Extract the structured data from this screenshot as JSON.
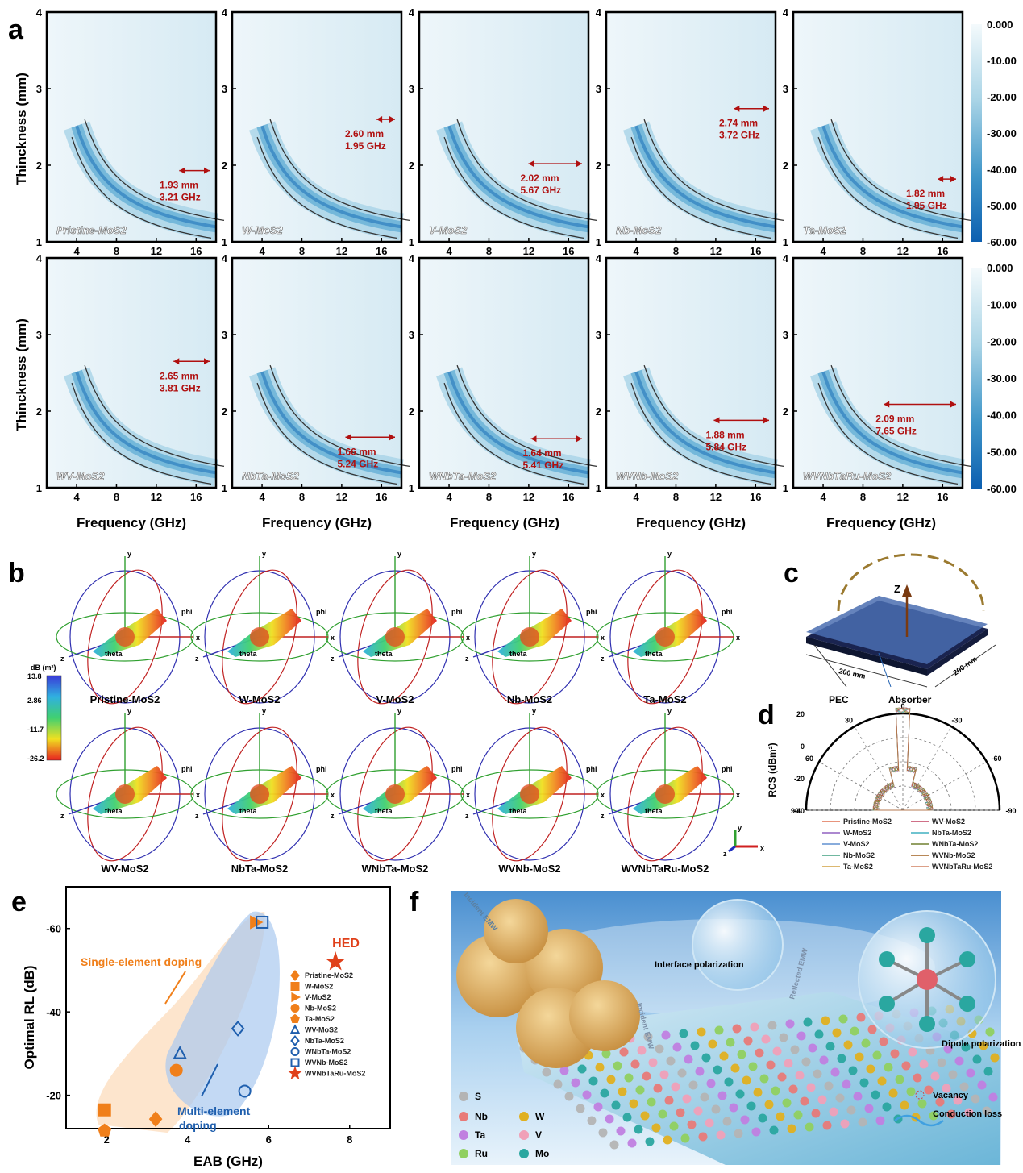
{
  "panel_labels": [
    "a",
    "b",
    "c",
    "d",
    "e",
    "f"
  ],
  "panel_a": {
    "xlabel": "Frequency (GHz)",
    "ylabel": "Thinckness (mm)",
    "x_ticks": [
      "4",
      "8",
      "12",
      "16"
    ],
    "y_ticks": [
      "1",
      "2",
      "3",
      "4"
    ],
    "colorbar_ticks": [
      "0.000",
      "-10.00",
      "-20.00",
      "-30.00",
      "-40.00",
      "-50.00",
      "-60.00"
    ],
    "samples": [
      {
        "name": "Pristine-MoS2",
        "mm": "1.93 mm",
        "ghz": "3.21 GHz"
      },
      {
        "name": "W-MoS2",
        "mm": "2.60 mm",
        "ghz": "1.95 GHz"
      },
      {
        "name": "V-MoS2",
        "mm": "2.02 mm",
        "ghz": "5.67 GHz"
      },
      {
        "name": "Nb-MoS2",
        "mm": "2.74 mm",
        "ghz": "3.72 GHz"
      },
      {
        "name": "Ta-MoS2",
        "mm": "1.82 mm",
        "ghz": "1.95 GHz"
      },
      {
        "name": "WV-MoS2",
        "mm": "2.65 mm",
        "ghz": "3.81 GHz"
      },
      {
        "name": "NbTa-MoS2",
        "mm": "1.66 mm",
        "ghz": "5.24 GHz"
      },
      {
        "name": "WNbTa-MoS2",
        "mm": "1.64 mm",
        "ghz": "5.41 GHz"
      },
      {
        "name": "WVNb-MoS2",
        "mm": "1.88 mm",
        "ghz": "5.84 GHz"
      },
      {
        "name": "WVNbTaRu-MoS2",
        "mm": "2.09 mm",
        "ghz": "7.65 GHz"
      }
    ]
  },
  "panel_b": {
    "names": [
      "Pristine-MoS2",
      "W-MoS2",
      "V-MoS2",
      "Nb-MoS2",
      "Ta-MoS2",
      "WV-MoS2",
      "NbTa-MoS2",
      "WNbTa-MoS2",
      "WVNb-MoS2",
      "WVNbTaRu-MoS2"
    ],
    "axis_labels": {
      "x": "x",
      "y": "y",
      "z": "z",
      "phi": "phi",
      "theta": "theta"
    },
    "colorbar_title": "dB (m²)",
    "colorbar_ticks": [
      "13.8",
      "2.86",
      "-11.7",
      "-26.2"
    ]
  },
  "panel_c": {
    "z_label": "Z",
    "dim1": "200 mm",
    "dim2": "200 mm",
    "pec": "PEC",
    "absorber": "Absorber"
  },
  "panel_d": {
    "ylabel": "RCS (dBm²)",
    "angle_labels": [
      "0",
      "30",
      "-30",
      "60",
      "-60",
      "90",
      "-90"
    ],
    "r_ticks": [
      "20",
      "0",
      "-20",
      "-40"
    ],
    "legend": [
      "Pristine-MoS2",
      "W-MoS2",
      "V-MoS2",
      "Nb-MoS2",
      "Ta-MoS2",
      "WV-MoS2",
      "NbTa-MoS2",
      "WNbTa-MoS2",
      "WVNb-MoS2",
      "WVNbTaRu-MoS2"
    ]
  },
  "chart_data": {
    "type": "scatter",
    "xlabel": "EAB (GHz)",
    "ylabel": "Optimal RL (dB)",
    "xlim": [
      1,
      9
    ],
    "ylim": [
      -12,
      -70
    ],
    "x_ticks": [
      "2",
      "4",
      "6",
      "8"
    ],
    "y_ticks": [
      "-60",
      "-40",
      "-20"
    ],
    "region_labels": [
      "Single-element doping",
      "Multi-element doping"
    ],
    "hed_label": "HED",
    "series": [
      {
        "name": "Pristine-MoS2",
        "x": 3.21,
        "y": -14.3,
        "marker": "diamond",
        "color": "#f07f1a",
        "filled": true
      },
      {
        "name": "W-MoS2",
        "x": 1.95,
        "y": -16.5,
        "marker": "square",
        "color": "#f07f1a",
        "filled": true
      },
      {
        "name": "V-MoS2",
        "x": 5.67,
        "y": -61.5,
        "marker": "triangle-right",
        "color": "#f07f1a",
        "filled": true
      },
      {
        "name": "Nb-MoS2",
        "x": 3.72,
        "y": -26,
        "marker": "circle",
        "color": "#f07f1a",
        "filled": true
      },
      {
        "name": "Ta-MoS2",
        "x": 1.95,
        "y": -11.5,
        "marker": "pentagon",
        "color": "#f07f1a",
        "filled": true
      },
      {
        "name": "WV-MoS2",
        "x": 3.81,
        "y": -30,
        "marker": "triangle",
        "color": "#1f5fae",
        "filled": false
      },
      {
        "name": "NbTa-MoS2",
        "x": 5.24,
        "y": -36,
        "marker": "diamond",
        "color": "#1f5fae",
        "filled": false
      },
      {
        "name": "WNbTa-MoS2",
        "x": 5.41,
        "y": -21,
        "marker": "circle",
        "color": "#1f5fae",
        "filled": false
      },
      {
        "name": "WVNb-MoS2",
        "x": 5.84,
        "y": -61.5,
        "marker": "square",
        "color": "#1f5fae",
        "filled": false
      },
      {
        "name": "WVNbTaRu-MoS2",
        "x": 7.65,
        "y": -52,
        "marker": "star",
        "color": "#e0401a",
        "filled": true
      }
    ]
  },
  "panel_f": {
    "labels": {
      "incident1": "Incident EMW",
      "incident2": "Incident EMW",
      "reflected": "Reflected EMW",
      "interface": "Interface polarization",
      "dipole": "Dipole polarization",
      "vacancy": "Vacancy",
      "conduction": "Conduction loss"
    },
    "elements": [
      {
        "sym": "S",
        "color": "#b4b4b4"
      },
      {
        "sym": "Nb",
        "color": "#e87a78"
      },
      {
        "sym": "W",
        "color": "#e0b020"
      },
      {
        "sym": "Ta",
        "color": "#c080e0"
      },
      {
        "sym": "V",
        "color": "#f0a0b8"
      },
      {
        "sym": "Ru",
        "color": "#90d060"
      },
      {
        "sym": "Mo",
        "color": "#2aa7a0"
      }
    ]
  },
  "colors": {
    "heat_light": "#e6f3f8",
    "heat_dark": "#1a70b8",
    "annot": "#b01010",
    "orange": "#f07f1a",
    "blue": "#1f5fae"
  }
}
